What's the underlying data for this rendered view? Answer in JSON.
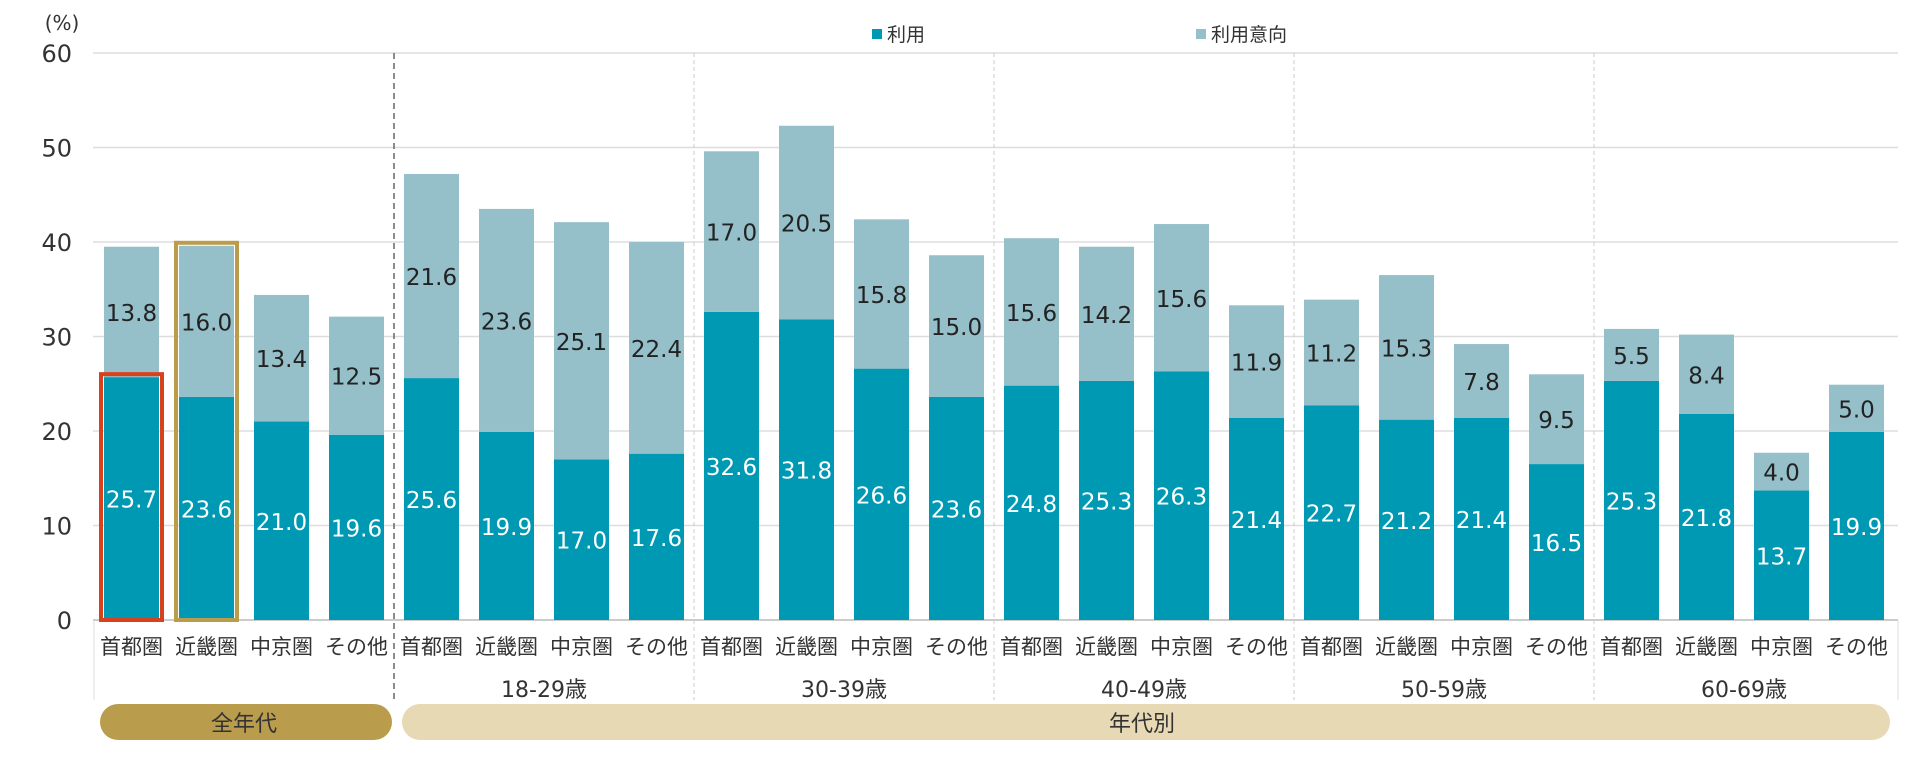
{
  "chart_data": {
    "type": "bar",
    "stacked": true,
    "yunit": "(%)",
    "ylim": [
      0,
      60
    ],
    "yticks": [
      0,
      10,
      20,
      30,
      40,
      50,
      60
    ],
    "grid": true,
    "legend_position": "top",
    "categories": [
      "首都圏",
      "近畿圏",
      "中京圏",
      "その他",
      "首都圏",
      "近畿圏",
      "中京圏",
      "その他",
      "首都圏",
      "近畿圏",
      "中京圏",
      "その他",
      "首都圏",
      "近畿圏",
      "中京圏",
      "その他",
      "首都圏",
      "近畿圏",
      "中京圏",
      "その他",
      "首都圏",
      "近畿圏",
      "中京圏",
      "その他"
    ],
    "age_groups": [
      "",
      "18-29歳",
      "30-39歳",
      "40-49歳",
      "50-59歳",
      "60-69歳"
    ],
    "bands": [
      {
        "label": "全年代",
        "color": "#b99c4c"
      },
      {
        "label": "年代別",
        "color": "#e8d9b5"
      }
    ],
    "series": [
      {
        "name": "利用",
        "color": "#0099b3",
        "values": [
          25.7,
          23.6,
          21.0,
          19.6,
          25.6,
          19.9,
          17.0,
          17.6,
          32.6,
          31.8,
          26.6,
          23.6,
          24.8,
          25.3,
          26.3,
          21.4,
          22.7,
          21.2,
          21.4,
          16.5,
          25.3,
          21.8,
          13.7,
          19.9
        ]
      },
      {
        "name": "利用意向",
        "color": "#95bfc9",
        "values": [
          13.8,
          16.0,
          13.4,
          12.5,
          21.6,
          23.6,
          25.1,
          22.4,
          17.0,
          20.5,
          15.8,
          15.0,
          15.6,
          14.2,
          15.6,
          11.9,
          11.2,
          15.3,
          7.8,
          9.5,
          5.5,
          8.4,
          4.0,
          5.0
        ]
      }
    ],
    "highlights": [
      {
        "category_index": 0,
        "series": "利用",
        "color": "#d9401c"
      },
      {
        "category_index": 1,
        "series": "total",
        "color": "#b99c4c"
      }
    ]
  }
}
